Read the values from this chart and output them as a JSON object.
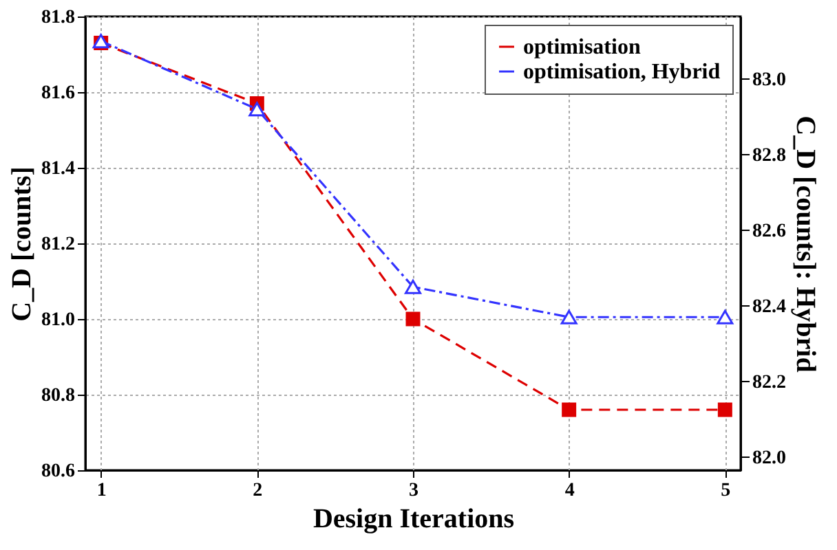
{
  "chart_data": {
    "type": "line",
    "xlabel": "Design Iterations",
    "ylabel": "C_D [counts]",
    "y2label": "C_D [counts]: Hybrid",
    "x": [
      1,
      2,
      3,
      4,
      5
    ],
    "xlim": [
      0.9,
      5.1
    ],
    "xticks": [
      1,
      2,
      3,
      4,
      5
    ],
    "ylim": [
      80.6,
      81.8
    ],
    "yticks": [
      80.6,
      80.8,
      {
        "value": 81,
        "label": "81.0"
      },
      81.2,
      81.4,
      81.6,
      81.8
    ],
    "y2lim": [
      81.965,
      83.165
    ],
    "y2ticks": [
      {
        "value": 82,
        "label": "82.0"
      },
      82.2,
      82.4,
      82.6,
      82.8,
      {
        "value": 83,
        "label": "83.0"
      }
    ],
    "grid": true,
    "legend": "top right",
    "series": [
      {
        "name": "optimisation",
        "color": "#dd0000",
        "marker": "square",
        "line_style": "dashed",
        "values": [
          81.73,
          81.57,
          81.0,
          80.76,
          80.76
        ]
      },
      {
        "name": "optimisation, Hybrid",
        "color": "#3333ff",
        "marker": "triangle",
        "line_style": "dashdot",
        "axis": "y2",
        "values": [
          83.1,
          82.92,
          82.45,
          82.37,
          82.37
        ]
      }
    ]
  }
}
